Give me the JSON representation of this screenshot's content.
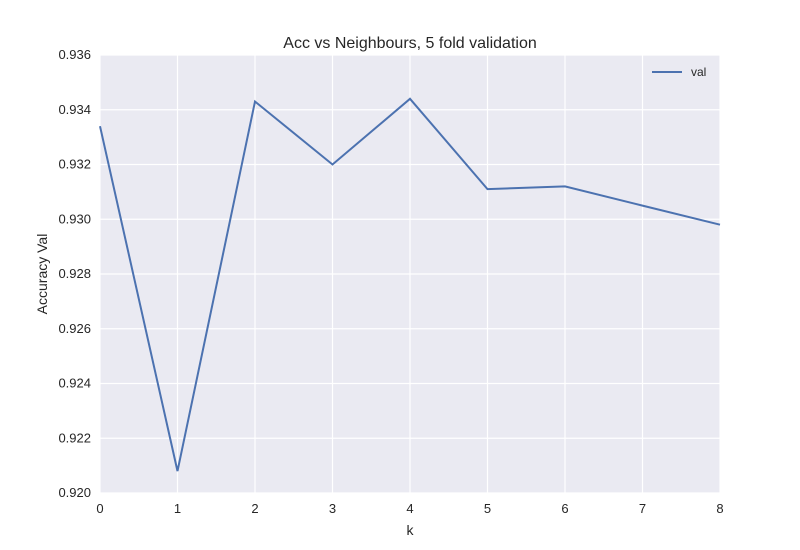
{
  "chart_data": {
    "type": "line",
    "title": "Acc vs Neighbours, 5 fold validation",
    "xlabel": "k",
    "ylabel": "Accuracy Val",
    "xlim": [
      0,
      8
    ],
    "ylim": [
      0.92,
      0.936
    ],
    "x_ticks": [
      "0",
      "1",
      "2",
      "3",
      "4",
      "5",
      "6",
      "7",
      "8"
    ],
    "y_ticks": [
      "0.920",
      "0.922",
      "0.924",
      "0.926",
      "0.928",
      "0.930",
      "0.932",
      "0.934",
      "0.936"
    ],
    "grid": true,
    "legend_position": "top-right",
    "series": [
      {
        "name": "val",
        "color": "#4c72b0",
        "x": [
          0,
          1,
          2,
          3,
          4,
          5,
          6,
          7,
          8
        ],
        "y": [
          0.9334,
          0.9208,
          0.9343,
          0.932,
          0.9344,
          0.9311,
          0.9312,
          0.9305,
          0.9298
        ]
      }
    ]
  },
  "style": {
    "plot_background": "#eaeaf2",
    "grid_color": "#ffffff"
  }
}
